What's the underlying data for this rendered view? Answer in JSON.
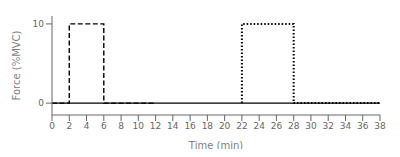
{
  "chart_data": {
    "type": "line",
    "xlabel": "Time (min)",
    "ylabel": "Force (%MVC)",
    "xlim": [
      0,
      38
    ],
    "ylim": [
      -1.5,
      11
    ],
    "xticks": [
      0,
      2,
      4,
      6,
      8,
      10,
      12,
      14,
      16,
      18,
      20,
      22,
      24,
      26,
      28,
      30,
      32,
      34,
      36,
      38
    ],
    "yticks": [
      0,
      10
    ],
    "grid": false,
    "series": [
      {
        "line_style": "dashed",
        "color": "black",
        "x": [
          0,
          2,
          2,
          6,
          6,
          12
        ],
        "values": [
          0,
          0,
          10,
          10,
          0,
          0
        ]
      },
      {
        "line_style": "solid",
        "color": "black",
        "x": [
          0,
          22,
          22,
          38
        ],
        "values": [
          0,
          0,
          0,
          0
        ]
      },
      {
        "line_style": "dotted",
        "color": "black",
        "x": [
          22,
          22,
          28,
          28,
          38
        ],
        "values": [
          0,
          10,
          10,
          0,
          0
        ]
      }
    ]
  }
}
